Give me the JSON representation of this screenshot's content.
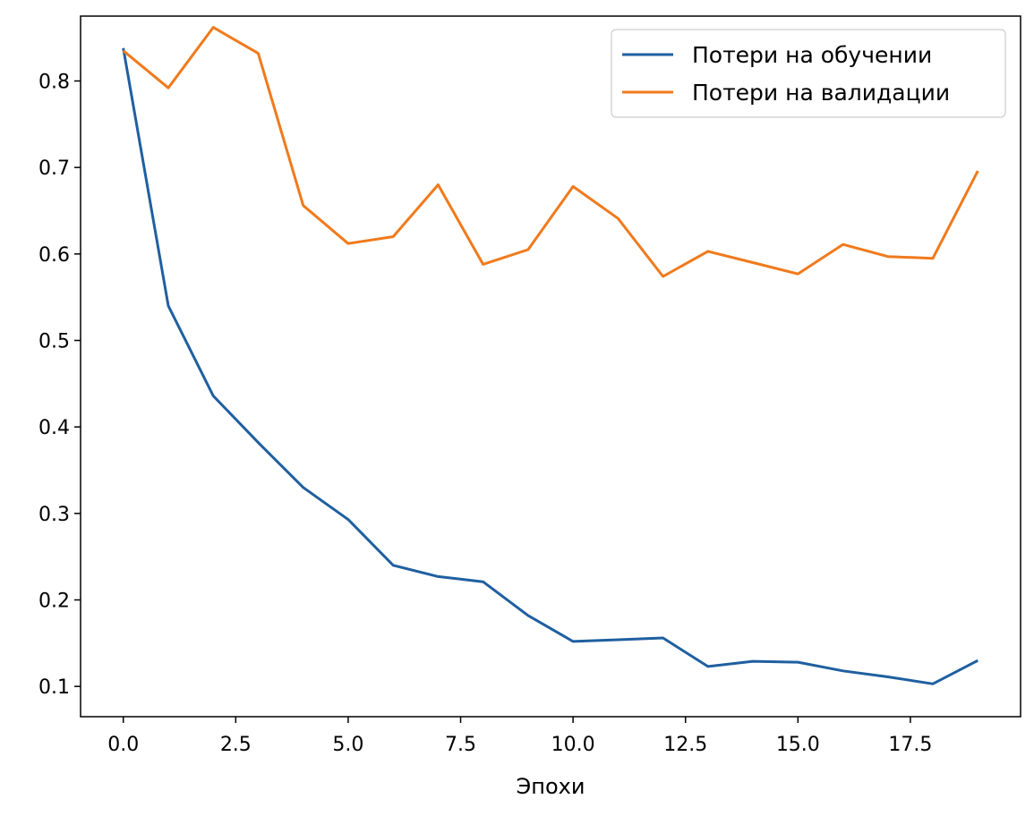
{
  "chart_data": {
    "type": "line",
    "title": "",
    "xlabel": "Эпохи",
    "ylabel": "",
    "xlim": [
      -0.95,
      19.95
    ],
    "ylim": [
      0.065,
      0.875
    ],
    "xticks": [
      0,
      2.5,
      5,
      7.5,
      10,
      12.5,
      15,
      17.5
    ],
    "xtick_labels": [
      "0.0",
      "2.5",
      "5.0",
      "7.5",
      "10.0",
      "12.5",
      "15.0",
      "17.5"
    ],
    "yticks": [
      0.1,
      0.2,
      0.3,
      0.4,
      0.5,
      0.6,
      0.7,
      0.8
    ],
    "ytick_labels": [
      "0.1",
      "0.2",
      "0.3",
      "0.4",
      "0.5",
      "0.6",
      "0.7",
      "0.8"
    ],
    "grid": false,
    "legend_position": "top-right",
    "x": [
      0,
      1,
      2,
      3,
      4,
      5,
      6,
      7,
      8,
      9,
      10,
      11,
      12,
      13,
      14,
      15,
      16,
      17,
      18,
      19
    ],
    "series": [
      {
        "name": "Потери на обучении",
        "color": "#1f5fa0",
        "values": [
          0.838,
          0.54,
          0.436,
          0.382,
          0.33,
          0.293,
          0.24,
          0.227,
          0.221,
          0.182,
          0.152,
          0.154,
          0.156,
          0.123,
          0.129,
          0.128,
          0.118,
          0.111,
          0.103,
          0.13
        ]
      },
      {
        "name": "Потери на валидации",
        "color": "#f07a1c",
        "values": [
          0.835,
          0.792,
          0.862,
          0.832,
          0.656,
          0.612,
          0.62,
          0.68,
          0.588,
          0.605,
          0.678,
          0.641,
          0.574,
          0.603,
          0.59,
          0.577,
          0.611,
          0.597,
          0.595,
          0.696
        ]
      }
    ]
  }
}
